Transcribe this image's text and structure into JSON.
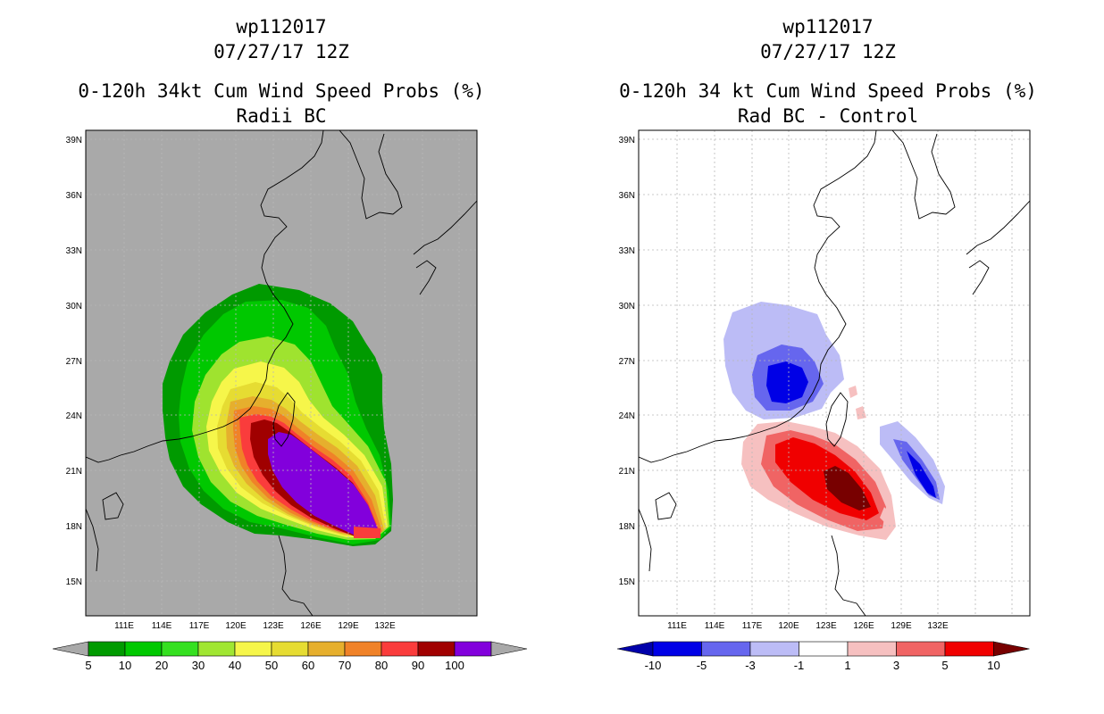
{
  "left_panel": {
    "storm_id": "wp112017",
    "datetime": "07/27/17 12Z",
    "title": "0-120h 34kt Cum Wind Speed Probs (%)",
    "subtitle": "Radii BC",
    "lat_labels": [
      "39N",
      "36N",
      "33N",
      "30N",
      "27N",
      "24N",
      "21N",
      "18N",
      "15N"
    ],
    "lon_labels": [
      "111E",
      "114E",
      "117E",
      "120E",
      "123E",
      "126E",
      "129E",
      "132E"
    ],
    "background_color": "#a9a9a9",
    "colorbar": {
      "labels": [
        "5",
        "10",
        "20",
        "30",
        "40",
        "50",
        "60",
        "70",
        "80",
        "90",
        "100"
      ],
      "colors": [
        "#009a00",
        "#00c800",
        "#35e020",
        "#a0e632",
        "#f6f64a",
        "#e6dc32",
        "#e6af2d",
        "#f08228",
        "#fa3c3c",
        "#a00000",
        "#8200dc"
      ],
      "under_color": "#a9a9a9",
      "over_color": "#a9a9a9"
    }
  },
  "right_panel": {
    "storm_id": "wp112017",
    "datetime": "07/27/17 12Z",
    "title": "0-120h 34 kt Cum Wind Speed Probs (%)",
    "subtitle": "Rad BC - Control",
    "lat_labels": [
      "39N",
      "36N",
      "33N",
      "30N",
      "27N",
      "24N",
      "21N",
      "18N",
      "15N"
    ],
    "lon_labels": [
      "111E",
      "114E",
      "117E",
      "120E",
      "123E",
      "126E",
      "129E",
      "132E"
    ],
    "background_color": "#ffffff",
    "colorbar": {
      "labels": [
        "-10",
        "-5",
        "-3",
        "-1",
        "1",
        "3",
        "5",
        "10"
      ],
      "colors": [
        "#0000e6",
        "#6666ee",
        "#bcbcf6",
        "#ffffff",
        "#f6c0c0",
        "#f06464",
        "#f00000"
      ],
      "under_color": "#0000aa",
      "over_color": "#780000"
    }
  }
}
